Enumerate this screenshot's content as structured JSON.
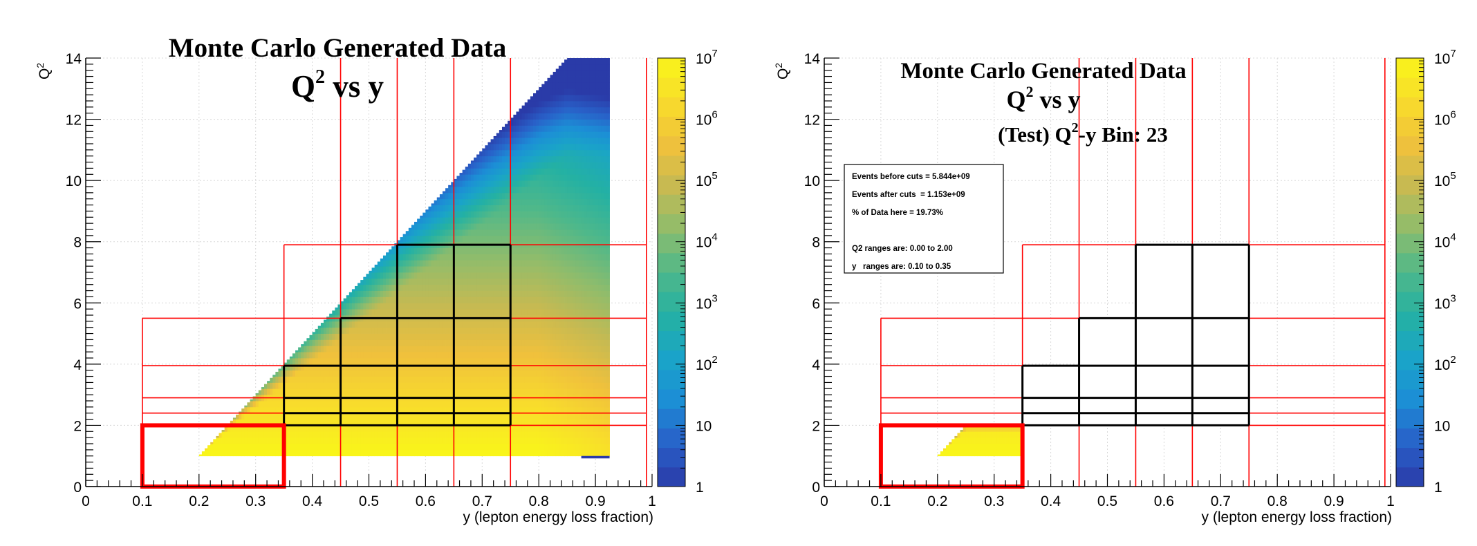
{
  "chart_data": [
    {
      "type": "heatmap",
      "title_lines": [
        "Monte Carlo Generated Data",
        "Q2 vs y"
      ],
      "title": {
        "line1": "Monte Carlo Generated Data",
        "line2_base": "Q",
        "line2_sup": "2",
        "line2_rest": " vs y"
      },
      "xlabel": "y (lepton energy loss fraction)",
      "ylabel": {
        "base": "Q",
        "sup": "2"
      },
      "xlim": [
        0,
        1
      ],
      "ylim": [
        0,
        14
      ],
      "x_ticks": [
        "0",
        "0.1",
        "0.2",
        "0.3",
        "0.4",
        "0.5",
        "0.6",
        "0.7",
        "0.8",
        "0.9",
        "1"
      ],
      "y_ticks": [
        "0",
        "2",
        "4",
        "6",
        "8",
        "10",
        "12",
        "14"
      ],
      "log_z": true,
      "zlim": [
        1,
        10000000
      ],
      "z_ticks": [
        {
          "value": 1,
          "base": "1",
          "exp": ""
        },
        {
          "value": 10,
          "base": "10",
          "exp": ""
        },
        {
          "value": 100,
          "base": "10",
          "exp": "2"
        },
        {
          "value": 1000,
          "base": "10",
          "exp": "3"
        },
        {
          "value": 10000,
          "base": "10",
          "exp": "4"
        },
        {
          "value": 100000,
          "base": "10",
          "exp": "5"
        },
        {
          "value": 1000000,
          "base": "10",
          "exp": "6"
        },
        {
          "value": 10000000,
          "base": "10",
          "exp": "7"
        }
      ],
      "grid": true,
      "data_region": {
        "y_min": 0.2,
        "y_max": 0.925,
        "q2_min": 1.0,
        "q2_upper_slope": 20.0,
        "q2_upper_offset": -3.0,
        "q2_max": 14
      }
    },
    {
      "type": "heatmap",
      "title": {
        "line1": "Monte Carlo Generated Data",
        "line2_base": "Q",
        "line2_sup": "2",
        "line2_rest": " vs y",
        "line3_pre": "(Test) Q",
        "line3_sup": "2",
        "line3_rest": "-y Bin: 23"
      },
      "xlabel": "y (lepton energy loss fraction)",
      "ylabel": {
        "base": "Q",
        "sup": "2"
      },
      "xlim": [
        0,
        1
      ],
      "ylim": [
        0,
        14
      ],
      "x_ticks": [
        "0",
        "0.1",
        "0.2",
        "0.3",
        "0.4",
        "0.5",
        "0.6",
        "0.7",
        "0.8",
        "0.9",
        "1"
      ],
      "y_ticks": [
        "0",
        "2",
        "4",
        "6",
        "8",
        "10",
        "12",
        "14"
      ],
      "log_z": true,
      "zlim": [
        1,
        10000000
      ],
      "z_ticks": [
        {
          "value": 1,
          "base": "1",
          "exp": ""
        },
        {
          "value": 10,
          "base": "10",
          "exp": ""
        },
        {
          "value": 100,
          "base": "10",
          "exp": "2"
        },
        {
          "value": 1000,
          "base": "10",
          "exp": "3"
        },
        {
          "value": 10000,
          "base": "10",
          "exp": "4"
        },
        {
          "value": 100000,
          "base": "10",
          "exp": "5"
        },
        {
          "value": 1000000,
          "base": "10",
          "exp": "6"
        },
        {
          "value": 10000000,
          "base": "10",
          "exp": "7"
        }
      ],
      "grid": true,
      "data_region": {
        "y_min": 0.2,
        "y_max": 0.35,
        "q2_min": 1.0,
        "q2_upper_slope": 20.0,
        "q2_upper_offset": -3.0,
        "q2_max": 2.0
      },
      "stats_box": [
        "Events before cuts = 5.844e+09",
        "Events after cuts  = 1.153e+09",
        "% of Data here = 19.73%",
        "",
        "Q2 ranges are: 0.00 to 2.00",
        "y   ranges are: 0.10 to 0.35"
      ]
    }
  ],
  "bins": {
    "red_boxes": [
      [
        0.1,
        0.35,
        0,
        2
      ],
      [
        0.35,
        0.45,
        2,
        2.4
      ],
      [
        0.45,
        0.55,
        2,
        2.4
      ],
      [
        0.55,
        0.65,
        2,
        2.4
      ],
      [
        0.65,
        0.75,
        2,
        2.4
      ],
      [
        0.35,
        0.45,
        2.4,
        2.9
      ],
      [
        0.45,
        0.55,
        2.4,
        2.9
      ],
      [
        0.55,
        0.65,
        2.4,
        2.9
      ],
      [
        0.65,
        0.75,
        2.4,
        2.9
      ],
      [
        0.35,
        0.45,
        2.9,
        3.95
      ],
      [
        0.45,
        0.55,
        2.9,
        3.95
      ],
      [
        0.55,
        0.65,
        2.9,
        3.95
      ],
      [
        0.65,
        0.75,
        2.9,
        3.95
      ],
      [
        0.45,
        0.55,
        3.95,
        5.5
      ],
      [
        0.55,
        0.65,
        3.95,
        5.5
      ],
      [
        0.65,
        0.75,
        3.95,
        5.5
      ],
      [
        0.55,
        0.65,
        5.5,
        7.9
      ],
      [
        0.65,
        0.75,
        5.5,
        7.9
      ]
    ],
    "red_h_lines": [
      [
        0.1,
        0.99,
        2.0
      ],
      [
        0.1,
        0.99,
        2.4
      ],
      [
        0.1,
        0.99,
        2.9
      ],
      [
        0.1,
        0.99,
        3.95
      ],
      [
        0.1,
        0.99,
        5.5
      ],
      [
        0.35,
        0.99,
        7.9
      ]
    ],
    "red_v_lines": [
      [
        0.1,
        0,
        5.5
      ],
      [
        0.35,
        0,
        7.9
      ],
      [
        0.45,
        0,
        14
      ],
      [
        0.55,
        0,
        14
      ],
      [
        0.65,
        0,
        14
      ],
      [
        0.75,
        0,
        14
      ],
      [
        0.99,
        0,
        14
      ]
    ],
    "highlight_box": [
      0.1,
      0.35,
      0,
      2
    ],
    "black_edges_panel1": [
      [
        0.35,
        2.0,
        0.75,
        2.0
      ],
      [
        0.35,
        2.4,
        0.75,
        2.4
      ],
      [
        0.35,
        2.9,
        0.75,
        2.9
      ],
      [
        0.35,
        3.95,
        0.75,
        3.95
      ],
      [
        0.45,
        5.5,
        0.75,
        5.5
      ],
      [
        0.55,
        7.9,
        0.75,
        7.9
      ],
      [
        0.35,
        2.0,
        0.35,
        3.95
      ],
      [
        0.45,
        2.0,
        0.45,
        5.5
      ],
      [
        0.55,
        2.0,
        0.55,
        7.9
      ],
      [
        0.65,
        2.0,
        0.65,
        7.9
      ],
      [
        0.75,
        2.0,
        0.75,
        7.9
      ]
    ]
  },
  "colors": {
    "red": "#ff0000",
    "black": "#000000",
    "grid": "#d8d8d8",
    "palette": [
      "#2a3ba8",
      "#2960c8",
      "#1c8ed6",
      "#1aa4c8",
      "#24b1a3",
      "#4fb88a",
      "#8ebc6c",
      "#c6ba52",
      "#f0c13c",
      "#f8dc2c",
      "#f9f51a"
    ]
  }
}
